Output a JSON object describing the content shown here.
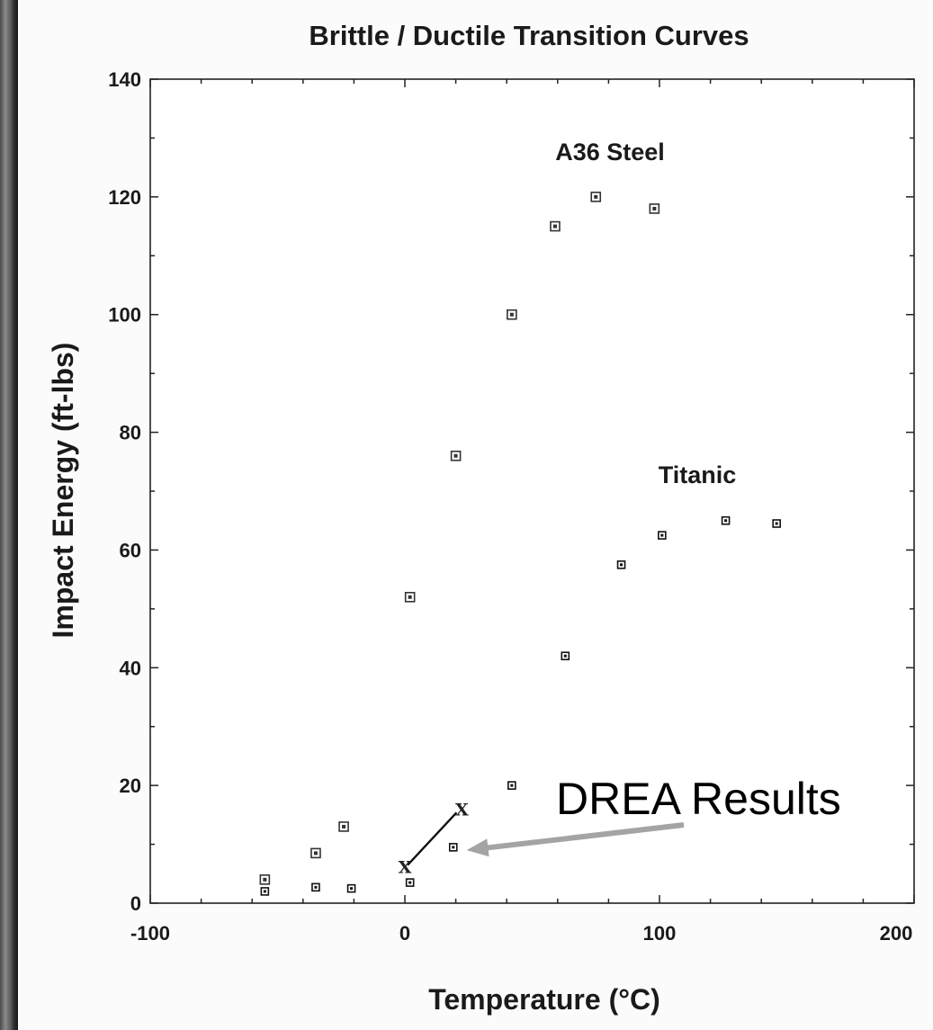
{
  "chart_data": {
    "type": "scatter",
    "title": "Brittle / Ductile Transition Curves",
    "xlabel": "Temperature (°C)",
    "ylabel": "Impact Energy (ft-lbs)",
    "xlim": [
      -100,
      200
    ],
    "ylim": [
      0,
      140
    ],
    "xticks": [
      "-100",
      "0",
      "100",
      "200"
    ],
    "yticks": [
      "0",
      "20",
      "40",
      "60",
      "80",
      "100",
      "120",
      "140"
    ],
    "series": [
      {
        "name": "A36 Steel",
        "x": [
          -55,
          -35,
          -24,
          2,
          20,
          42,
          59,
          75,
          98
        ],
        "y": [
          4,
          8.5,
          13,
          52,
          76,
          100,
          115,
          120,
          118
        ]
      },
      {
        "name": "Titanic",
        "x": [
          -55,
          -35,
          -21,
          2,
          19,
          42,
          63,
          85,
          101,
          126,
          146
        ],
        "y": [
          2,
          2.7,
          2.5,
          3.5,
          9.5,
          20,
          42,
          57.5,
          62.5,
          65,
          64.5
        ]
      }
    ],
    "annotations": [
      {
        "label": "X",
        "points": [
          {
            "x": 0,
            "y": 6
          },
          {
            "x": 21,
            "y": 16
          }
        ]
      },
      {
        "text": "DREA Results",
        "arrow_to": {
          "x": 20,
          "y": 9
        }
      }
    ]
  }
}
